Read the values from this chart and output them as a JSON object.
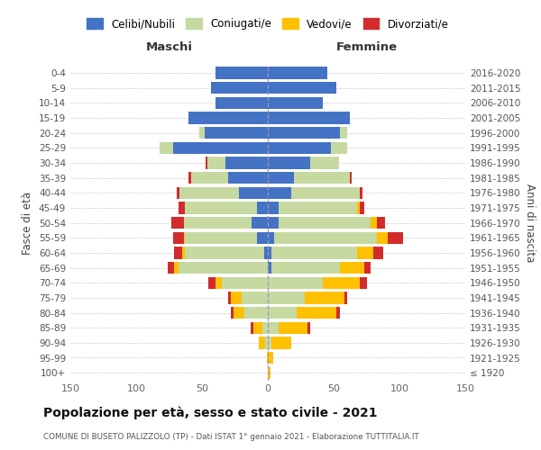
{
  "age_groups": [
    "100+",
    "95-99",
    "90-94",
    "85-89",
    "80-84",
    "75-79",
    "70-74",
    "65-69",
    "60-64",
    "55-59",
    "50-54",
    "45-49",
    "40-44",
    "35-39",
    "30-34",
    "25-29",
    "20-24",
    "15-19",
    "10-14",
    "5-9",
    "0-4"
  ],
  "birth_years": [
    "≤ 1920",
    "1921-1925",
    "1926-1930",
    "1931-1935",
    "1936-1940",
    "1941-1945",
    "1946-1950",
    "1951-1955",
    "1956-1960",
    "1961-1965",
    "1966-1970",
    "1971-1975",
    "1976-1980",
    "1981-1985",
    "1986-1990",
    "1991-1995",
    "1996-2000",
    "2001-2005",
    "2006-2010",
    "2011-2015",
    "2016-2020"
  ],
  "males": {
    "celibi": [
      0,
      0,
      0,
      0,
      0,
      0,
      0,
      0,
      3,
      8,
      12,
      8,
      22,
      30,
      32,
      72,
      48,
      60,
      40,
      43,
      40
    ],
    "coniugati": [
      0,
      0,
      2,
      4,
      18,
      20,
      35,
      68,
      60,
      55,
      52,
      55,
      45,
      28,
      14,
      10,
      4,
      0,
      0,
      0,
      0
    ],
    "vedovi": [
      0,
      1,
      5,
      7,
      8,
      8,
      5,
      3,
      2,
      1,
      0,
      0,
      0,
      0,
      0,
      0,
      0,
      0,
      0,
      0,
      0
    ],
    "divorziati": [
      0,
      0,
      0,
      2,
      2,
      2,
      5,
      5,
      6,
      8,
      9,
      5,
      2,
      2,
      1,
      0,
      0,
      0,
      0,
      0,
      0
    ]
  },
  "females": {
    "nubili": [
      0,
      0,
      0,
      0,
      0,
      0,
      0,
      3,
      3,
      5,
      8,
      8,
      18,
      20,
      32,
      48,
      55,
      62,
      42,
      52,
      45
    ],
    "coniugate": [
      0,
      0,
      3,
      8,
      22,
      28,
      42,
      52,
      65,
      78,
      70,
      60,
      52,
      42,
      22,
      12,
      5,
      0,
      0,
      0,
      0
    ],
    "vedove": [
      2,
      4,
      15,
      22,
      30,
      30,
      28,
      18,
      12,
      8,
      5,
      2,
      0,
      0,
      0,
      0,
      0,
      0,
      0,
      0,
      0
    ],
    "divorziate": [
      0,
      0,
      0,
      2,
      3,
      2,
      5,
      5,
      8,
      12,
      6,
      3,
      2,
      2,
      0,
      0,
      0,
      0,
      0,
      0,
      0
    ]
  },
  "colors": {
    "celibi": "#4472c4",
    "coniugati": "#c5d9a0",
    "vedovi": "#ffc000",
    "divorziati": "#d32b2b"
  },
  "title": "Popolazione per età, sesso e stato civile - 2021",
  "subtitle": "COMUNE DI BUSETO PALIZZOLO (TP) - Dati ISTAT 1° gennaio 2021 - Elaborazione TUTTITALIA.IT",
  "xlabel_left": "Maschi",
  "xlabel_right": "Femmine",
  "ylabel_left": "Fasce di età",
  "ylabel_right": "Anni di nascita",
  "xlim": 150,
  "legend_labels": [
    "Celibi/Nubili",
    "Coniugati/e",
    "Vedovi/e",
    "Divorziati/e"
  ],
  "background_color": "#ffffff",
  "bar_height": 0.8
}
